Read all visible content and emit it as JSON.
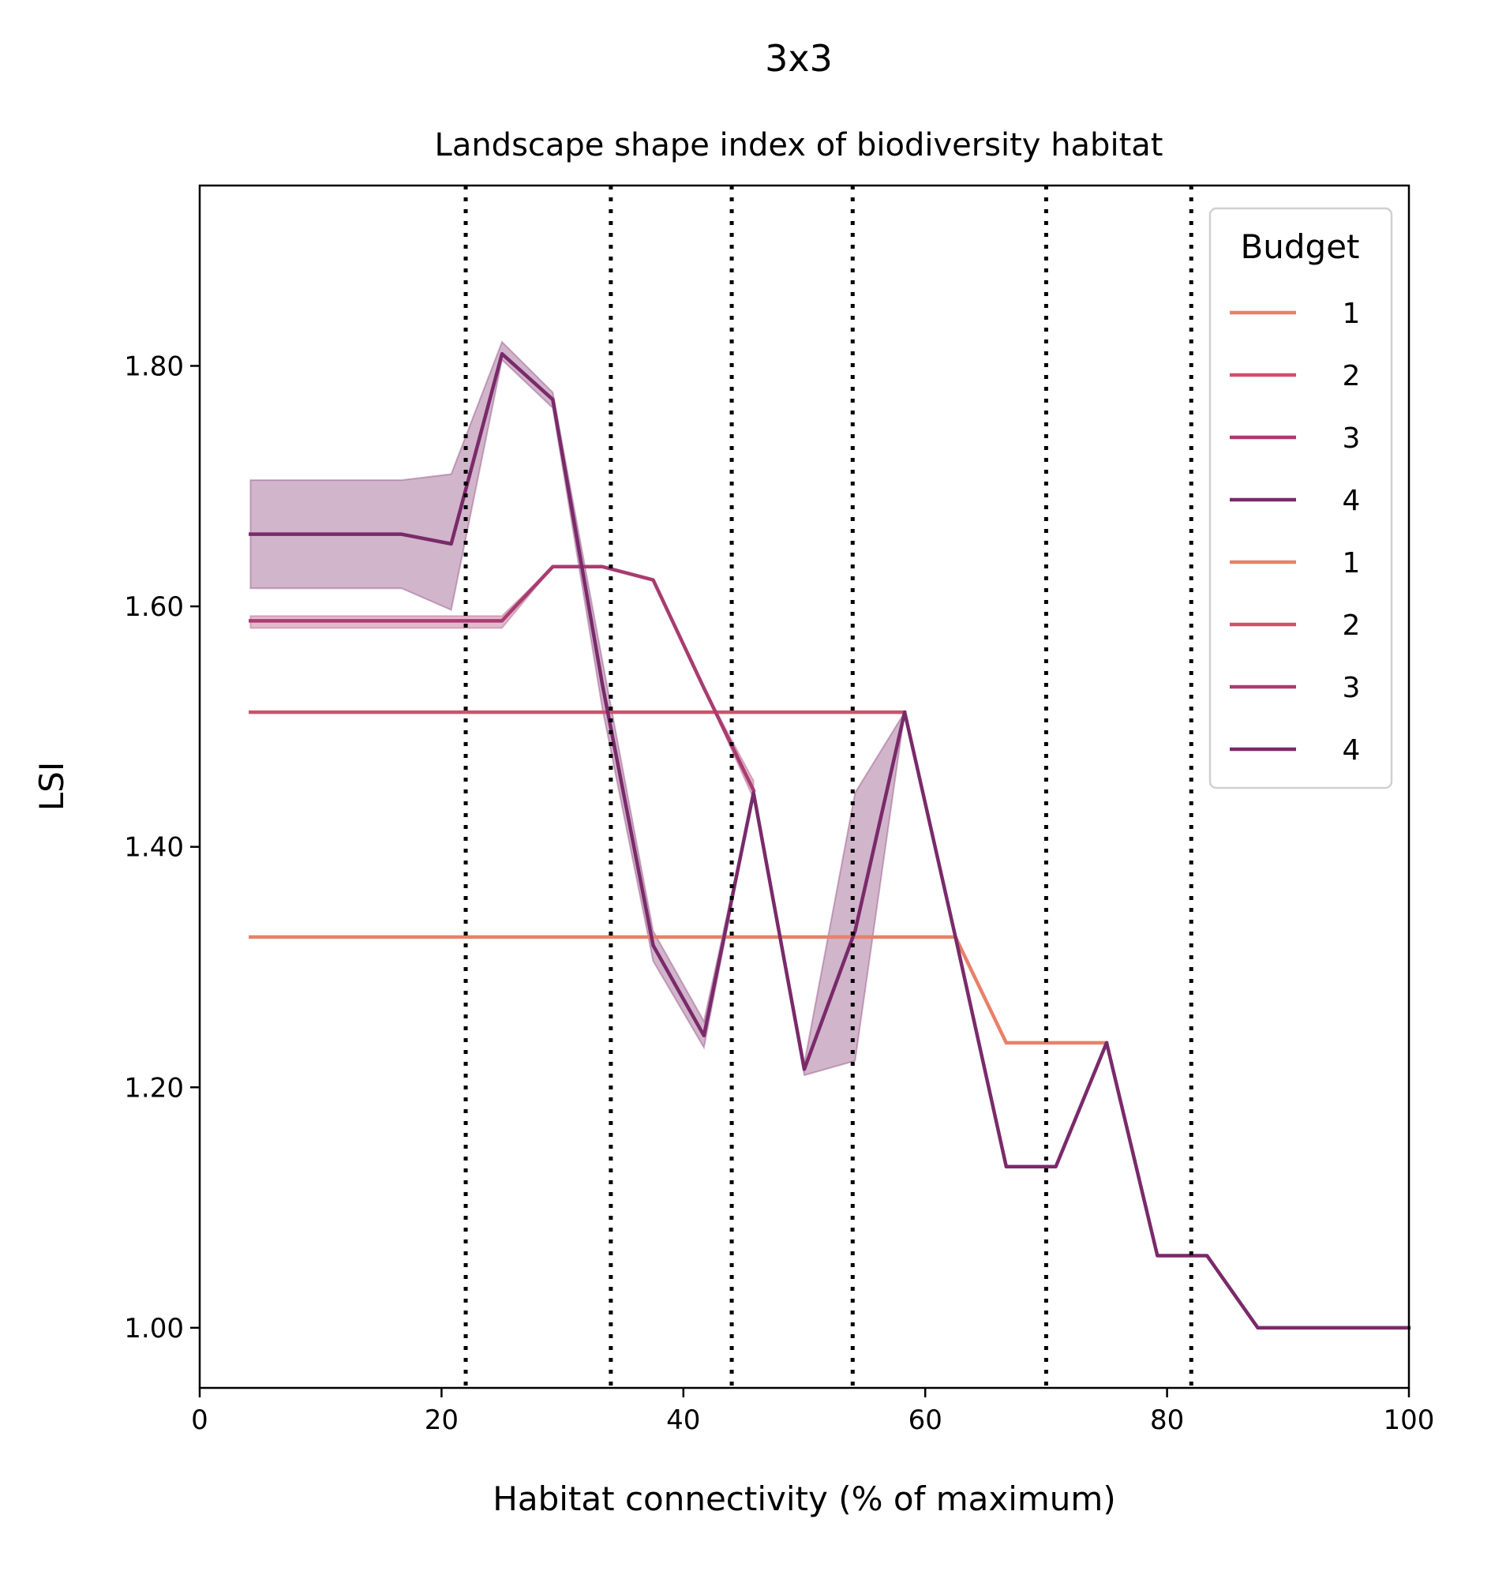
{
  "chart_data": {
    "type": "line",
    "suptitle": "3x3",
    "title": "Landscape shape index of biodiversity habitat",
    "xlabel": "Habitat connectivity (% of maximum)",
    "ylabel": "LSI",
    "xlim": [
      0,
      100
    ],
    "ylim": [
      0.95,
      1.95
    ],
    "xticks": [
      0,
      20,
      40,
      60,
      80,
      100
    ],
    "xtick_labels": [
      "0",
      "20",
      "40",
      "60",
      "80",
      "100"
    ],
    "yticks": [
      1.0,
      1.2,
      1.4,
      1.6,
      1.8
    ],
    "ytick_labels": [
      "1.00",
      "1.20",
      "1.40",
      "1.60",
      "1.80"
    ],
    "vlines": [
      22,
      34,
      44,
      54,
      70,
      82
    ],
    "legend": {
      "title": "Budget",
      "placement": "upper right",
      "entries": [
        {
          "label": "1",
          "color": "#e8816a"
        },
        {
          "label": "2",
          "color": "#d0506a"
        },
        {
          "label": "3",
          "color": "#a83c70"
        },
        {
          "label": "4",
          "color": "#7a2a6a"
        },
        {
          "label": "1",
          "color": "#e8816a"
        },
        {
          "label": "2",
          "color": "#d0506a"
        },
        {
          "label": "3",
          "color": "#a83c70"
        },
        {
          "label": "4",
          "color": "#7a2a6a"
        }
      ]
    },
    "series": [
      {
        "color": "#e8816a",
        "x": [
          4.2,
          62.5,
          66.7,
          75.0
        ],
        "y": [
          1.325,
          1.325,
          1.237,
          1.237
        ]
      },
      {
        "color": "#d0506a",
        "x": [
          4.2,
          58.3
        ],
        "y": [
          1.512,
          1.512
        ]
      },
      {
        "color": "#a83c70",
        "x": [
          4.2,
          25.0,
          29.2,
          33.3,
          37.5,
          41.7,
          45.8
        ],
        "y": [
          1.588,
          1.588,
          1.633,
          1.633,
          1.622,
          1.532,
          1.447
        ],
        "band": {
          "x": [
            4.2,
            25.0,
            29.2,
            33.3,
            37.5,
            41.7,
            45.8
          ],
          "lower": [
            1.582,
            1.582,
            1.633,
            1.633,
            1.622,
            1.532,
            1.44
          ],
          "upper": [
            1.592,
            1.592,
            1.633,
            1.633,
            1.622,
            1.532,
            1.455
          ]
        }
      },
      {
        "color": "#7a2a6a",
        "x": [
          4.2,
          16.7,
          20.8,
          25.0,
          29.2,
          33.3,
          37.5,
          41.7,
          45.8,
          50.0,
          54.2,
          58.3,
          62.5,
          66.7,
          70.8,
          75.0,
          79.2,
          83.3,
          87.5,
          100.0
        ],
        "y": [
          1.66,
          1.66,
          1.652,
          1.81,
          1.772,
          1.535,
          1.318,
          1.243,
          1.445,
          1.215,
          1.33,
          1.512,
          1.325,
          1.134,
          1.134,
          1.237,
          1.06,
          1.06,
          1.0,
          1.0
        ],
        "band": {
          "x": [
            4.2,
            16.7,
            20.8,
            25.0,
            29.2,
            33.3,
            37.5,
            41.7,
            45.8,
            50.0,
            54.2,
            58.3
          ],
          "lower": [
            1.615,
            1.615,
            1.597,
            1.805,
            1.765,
            1.515,
            1.305,
            1.233,
            1.445,
            1.21,
            1.222,
            1.512
          ],
          "upper": [
            1.705,
            1.705,
            1.71,
            1.82,
            1.778,
            1.555,
            1.33,
            1.255,
            1.445,
            1.22,
            1.445,
            1.512
          ]
        }
      }
    ]
  }
}
